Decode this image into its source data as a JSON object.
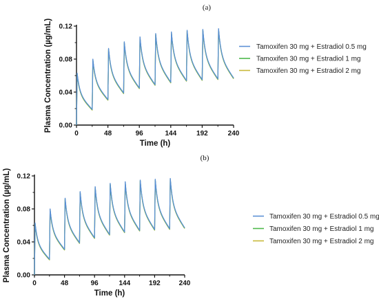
{
  "chart_data": [
    {
      "type": "line",
      "panel_label": "(a)",
      "xlabel": "Time (h)",
      "ylabel": "Plasma Concentration (µg/mL)",
      "xlim": [
        0,
        240
      ],
      "ylim": [
        0,
        0.12
      ],
      "xticks": [
        "0",
        "48",
        "96",
        "144",
        "192",
        "240"
      ],
      "yticks": [
        "0.00",
        "0.04",
        "0.08",
        "0.12"
      ],
      "grid": false,
      "legend_position": "right",
      "dosing_interval_h": 24,
      "peaks": [
        {
          "t": 1,
          "c": 0.063
        },
        {
          "t": 25,
          "c": 0.08
        },
        {
          "t": 49,
          "c": 0.093
        },
        {
          "t": 73,
          "c": 0.101
        },
        {
          "t": 97,
          "c": 0.107
        },
        {
          "t": 121,
          "c": 0.111
        },
        {
          "t": 145,
          "c": 0.113
        },
        {
          "t": 169,
          "c": 0.115
        },
        {
          "t": 193,
          "c": 0.116
        },
        {
          "t": 217,
          "c": 0.117
        }
      ],
      "troughs": [
        {
          "t": 24,
          "c": 0.019
        },
        {
          "t": 48,
          "c": 0.031
        },
        {
          "t": 72,
          "c": 0.039
        },
        {
          "t": 96,
          "c": 0.045
        },
        {
          "t": 120,
          "c": 0.049
        },
        {
          "t": 144,
          "c": 0.052
        },
        {
          "t": 168,
          "c": 0.054
        },
        {
          "t": 192,
          "c": 0.055
        },
        {
          "t": 216,
          "c": 0.056
        },
        {
          "t": 240,
          "c": 0.057
        }
      ],
      "series": [
        {
          "name": "Tamoxifen 30 mg + Estradiol 0.5 mg",
          "color": "#5b8fd6"
        },
        {
          "name": "Tamoxifen 30 mg + Estradiol 1 mg",
          "color": "#4cb84a"
        },
        {
          "name": "Tamoxifen 30 mg + Estradiol 2 mg",
          "color": "#c8b838"
        }
      ]
    },
    {
      "type": "line",
      "panel_label": "(b)",
      "xlabel": "Time (h)",
      "ylabel": "Plasma Concentration (µg/mL)",
      "xlim": [
        0,
        240
      ],
      "ylim": [
        0,
        0.12
      ],
      "xticks": [
        "0",
        "48",
        "96",
        "144",
        "192",
        "240"
      ],
      "yticks": [
        "0.00",
        "0.04",
        "0.08",
        "0.12"
      ],
      "grid": false,
      "legend_position": "right",
      "dosing_interval_h": 24,
      "peaks": [
        {
          "t": 1,
          "c": 0.063
        },
        {
          "t": 25,
          "c": 0.08
        },
        {
          "t": 49,
          "c": 0.093
        },
        {
          "t": 73,
          "c": 0.101
        },
        {
          "t": 97,
          "c": 0.107
        },
        {
          "t": 121,
          "c": 0.111
        },
        {
          "t": 145,
          "c": 0.113
        },
        {
          "t": 169,
          "c": 0.115
        },
        {
          "t": 193,
          "c": 0.116
        },
        {
          "t": 217,
          "c": 0.117
        }
      ],
      "troughs": [
        {
          "t": 24,
          "c": 0.019
        },
        {
          "t": 48,
          "c": 0.031
        },
        {
          "t": 72,
          "c": 0.039
        },
        {
          "t": 96,
          "c": 0.045
        },
        {
          "t": 120,
          "c": 0.049
        },
        {
          "t": 144,
          "c": 0.052
        },
        {
          "t": 168,
          "c": 0.054
        },
        {
          "t": 192,
          "c": 0.055
        },
        {
          "t": 216,
          "c": 0.056
        },
        {
          "t": 240,
          "c": 0.057
        }
      ],
      "series": [
        {
          "name": "Tamoxifen 30 mg + Estradiol 0.5 mg",
          "color": "#5b8fd6"
        },
        {
          "name": "Tamoxifen 30 mg + Estradiol 1 mg",
          "color": "#4cb84a"
        },
        {
          "name": "Tamoxifen 30 mg + Estradiol 2 mg",
          "color": "#c8b838"
        }
      ]
    }
  ]
}
